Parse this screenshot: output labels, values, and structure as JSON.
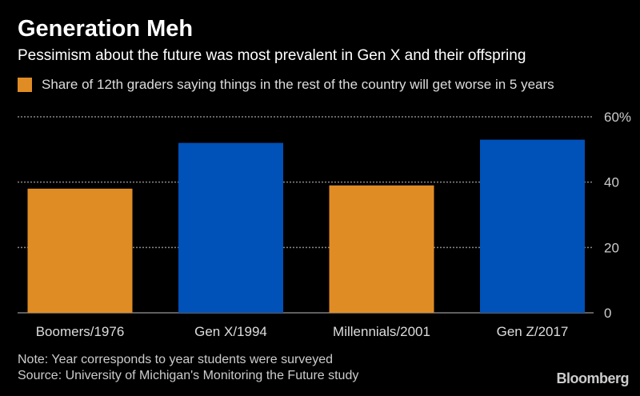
{
  "title": "Generation Meh",
  "subtitle": "Pessimism about the future was most prevalent in Gen X and their offspring",
  "notes": [
    "Note: Year corresponds to year students were surveyed",
    "Source: University of Michigan's Monitoring the Future study"
  ],
  "logo": "Bloomberg",
  "chart_data": {
    "type": "bar",
    "title": "Generation Meh",
    "legend": [
      {
        "name": "Share of 12th graders saying things in the rest of the country will get worse in 5 years",
        "color": "#e08c24"
      }
    ],
    "legend_position": "top-left",
    "categories": [
      "Boomers/1976",
      "Gen X/1994",
      "Millennials/2001",
      "Gen Z/2017"
    ],
    "values": [
      38,
      52,
      39,
      53
    ],
    "colors": [
      "#e08c24",
      "#0051b8",
      "#e08c24",
      "#0051b8"
    ],
    "y_ticks": [
      0,
      20,
      40,
      60
    ],
    "y_tick_labels": [
      "0",
      "20",
      "40",
      "60%"
    ],
    "ylim": [
      0,
      60
    ],
    "y_axis_side": "right",
    "grid": true,
    "xlabel": "",
    "ylabel": ""
  }
}
